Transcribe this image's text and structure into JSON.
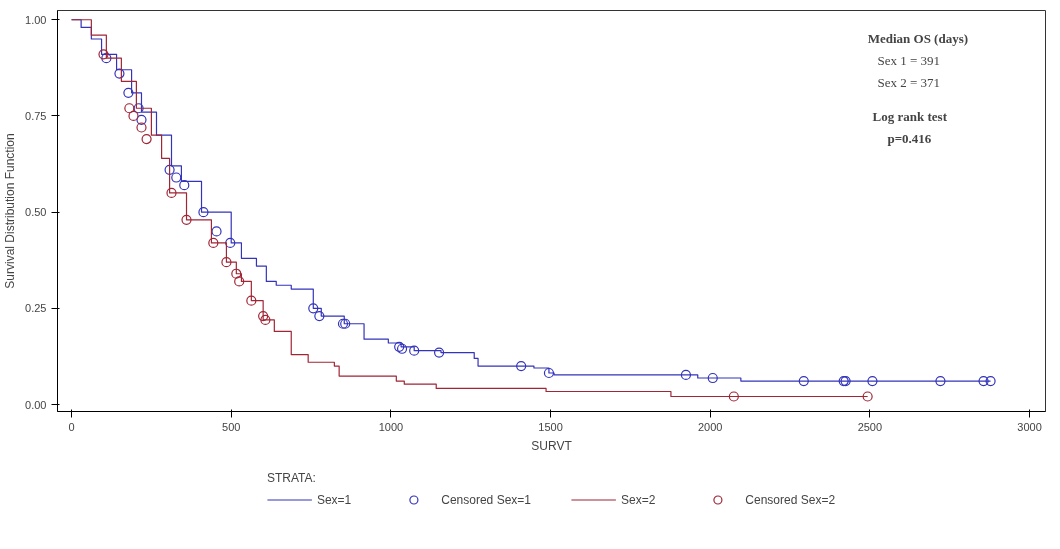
{
  "chart_data": {
    "type": "step",
    "xlabel": "SURVT",
    "ylabel": "Survival Distribution Function",
    "legend_title": "STRATA:",
    "xlim": [
      -44,
      3050
    ],
    "ylim": [
      -0.018,
      1.024
    ],
    "xticks": [
      0,
      500,
      1000,
      1500,
      2000,
      2500,
      3000
    ],
    "yticks": [
      {
        "value": 0,
        "label": "0.00"
      },
      {
        "value": 0.25,
        "label": "0.25"
      },
      {
        "value": 0.5,
        "label": "0.50"
      },
      {
        "value": 0.75,
        "label": "0.75"
      },
      {
        "value": 1,
        "label": "1.00"
      }
    ],
    "grid": false,
    "legend": "bottom",
    "line_style": "solid",
    "annotations": [
      "Median OS (days)",
      "Sex 1 = 391",
      "Sex 2 = 371",
      "Log rank test",
      "p=0.416"
    ],
    "series": [
      {
        "name": "Sex=1",
        "color": "#3333bb",
        "x": [
          0,
          30,
          62,
          94,
          141,
          188,
          219,
          266,
          313,
          344,
          407,
          500,
          532,
          579,
          610,
          641,
          688,
          757,
          782,
          854,
          916,
          992,
          1032,
          1073,
          1157,
          1261,
          1273,
          1448,
          1495,
          1511,
          1961,
          2096,
          2878
        ],
        "values": [
          1.0,
          0.98,
          0.95,
          0.91,
          0.87,
          0.81,
          0.76,
          0.7,
          0.62,
          0.58,
          0.5,
          0.42,
          0.38,
          0.36,
          0.32,
          0.31,
          0.3,
          0.25,
          0.23,
          0.21,
          0.17,
          0.16,
          0.15,
          0.14,
          0.135,
          0.12,
          0.1,
          0.095,
          0.082,
          0.077,
          0.069,
          0.061,
          0.061
        ]
      },
      {
        "name": "Censored Sex=1",
        "type": "scatter",
        "marker": "circle",
        "color": "#3333bb",
        "x": [
          109,
          150,
          178,
          210,
          219,
          307,
          328,
          353,
          413,
          454,
          497,
          757,
          776,
          850,
          857,
          1026,
          1035,
          1073,
          1151,
          1408,
          1495,
          1924,
          2008,
          2293,
          2418,
          2424,
          2508,
          2721,
          2856,
          2878
        ],
        "values": [
          0.9,
          0.86,
          0.81,
          0.77,
          0.74,
          0.61,
          0.59,
          0.57,
          0.5,
          0.45,
          0.42,
          0.25,
          0.23,
          0.21,
          0.21,
          0.15,
          0.145,
          0.14,
          0.135,
          0.1,
          0.082,
          0.077,
          0.069,
          0.061,
          0.061,
          0.061,
          0.061,
          0.061,
          0.061,
          0.061
        ]
      },
      {
        "name": "Sex=2",
        "color": "#a02535",
        "x": [
          0,
          62,
          109,
          156,
          203,
          250,
          282,
          307,
          360,
          438,
          485,
          516,
          532,
          563,
          600,
          635,
          688,
          741,
          823,
          838,
          1017,
          1042,
          1142,
          1486,
          1877,
          2493
        ],
        "values": [
          1.0,
          0.96,
          0.9,
          0.84,
          0.77,
          0.7,
          0.64,
          0.55,
          0.48,
          0.42,
          0.37,
          0.34,
          0.32,
          0.27,
          0.22,
          0.19,
          0.13,
          0.11,
          0.1,
          0.074,
          0.061,
          0.053,
          0.042,
          0.034,
          0.021,
          0.021
        ]
      },
      {
        "name": "Censored Sex=2",
        "type": "scatter",
        "marker": "circle",
        "color": "#a02535",
        "x": [
          100,
          181,
          194,
          219,
          235,
          313,
          360,
          444,
          485,
          516,
          525,
          563,
          600,
          607,
          2074,
          2493
        ],
        "values": [
          0.91,
          0.77,
          0.75,
          0.72,
          0.69,
          0.55,
          0.48,
          0.42,
          0.37,
          0.34,
          0.32,
          0.27,
          0.23,
          0.22,
          0.021,
          0.021
        ]
      }
    ]
  }
}
